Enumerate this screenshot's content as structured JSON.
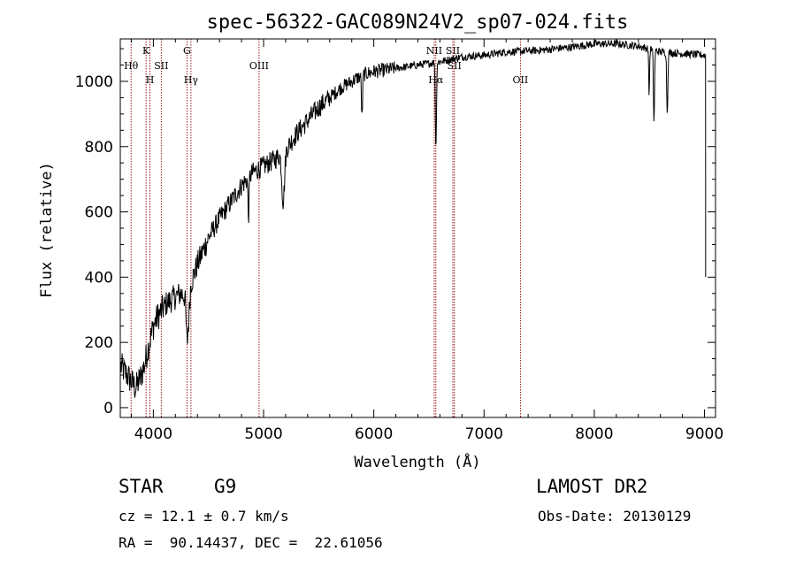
{
  "chart_data": {
    "type": "line",
    "title": "spec-56322-GAC089N24V2_sp07-024.fits",
    "xlabel": "Wavelength (Å)",
    "ylabel": "Flux (relative)",
    "xlim": [
      3700,
      9100
    ],
    "ylim": [
      -30,
      1130
    ],
    "xticks": [
      4000,
      5000,
      6000,
      7000,
      8000,
      9000
    ],
    "yticks": [
      0,
      200,
      400,
      600,
      800,
      1000
    ],
    "xtick_labels": [
      "4000",
      "5000",
      "6000",
      "7000",
      "8000",
      "9000"
    ],
    "ytick_labels": [
      "0",
      "200",
      "400",
      "600",
      "800",
      "1000"
    ],
    "continuum": [
      [
        3700,
        130
      ],
      [
        3760,
        100
      ],
      [
        3800,
        80
      ],
      [
        3840,
        60
      ],
      [
        3880,
        90
      ],
      [
        3920,
        130
      ],
      [
        3950,
        180
      ],
      [
        3980,
        220
      ],
      [
        4000,
        250
      ],
      [
        4040,
        280
      ],
      [
        4080,
        300
      ],
      [
        4120,
        320
      ],
      [
        4160,
        330
      ],
      [
        4200,
        340
      ],
      [
        4250,
        350
      ],
      [
        4300,
        340
      ],
      [
        4320,
        270
      ],
      [
        4340,
        380
      ],
      [
        4400,
        440
      ],
      [
        4500,
        520
      ],
      [
        4600,
        580
      ],
      [
        4700,
        630
      ],
      [
        4800,
        680
      ],
      [
        4900,
        720
      ],
      [
        5000,
        740
      ],
      [
        5100,
        760
      ],
      [
        5200,
        790
      ],
      [
        5300,
        840
      ],
      [
        5400,
        880
      ],
      [
        5500,
        920
      ],
      [
        5600,
        950
      ],
      [
        5700,
        980
      ],
      [
        5800,
        1000
      ],
      [
        5900,
        1020
      ],
      [
        6000,
        1030
      ],
      [
        6200,
        1040
      ],
      [
        6400,
        1050
      ],
      [
        6600,
        1060
      ],
      [
        6800,
        1075
      ],
      [
        7000,
        1080
      ],
      [
        7200,
        1090
      ],
      [
        7500,
        1095
      ],
      [
        7800,
        1105
      ],
      [
        8000,
        1115
      ],
      [
        8200,
        1115
      ],
      [
        8400,
        1108
      ],
      [
        8600,
        1090
      ],
      [
        8800,
        1085
      ],
      [
        9000,
        1080
      ]
    ],
    "absorption_features": [
      {
        "center": 4304,
        "depth": 120,
        "width": 8
      },
      {
        "center": 4863,
        "depth": 120,
        "width": 5
      },
      {
        "center": 5178,
        "depth": 150,
        "width": 12
      },
      {
        "center": 5893,
        "depth": 130,
        "width": 5
      },
      {
        "center": 6563,
        "depth": 270,
        "width": 5
      },
      {
        "center": 8498,
        "depth": 140,
        "width": 4
      },
      {
        "center": 8542,
        "depth": 220,
        "width": 5
      },
      {
        "center": 8662,
        "depth": 190,
        "width": 5
      }
    ],
    "spectral_lines": [
      {
        "name": "Hθ",
        "wavelength": 3798,
        "row": 2
      },
      {
        "name": "K",
        "wavelength": 3934,
        "row": 1
      },
      {
        "name": "H",
        "wavelength": 3969,
        "row": 3
      },
      {
        "name": "SII",
        "wavelength": 4072,
        "row": 2
      },
      {
        "name": "G",
        "wavelength": 4305,
        "row": 1
      },
      {
        "name": "Hγ",
        "wavelength": 4341,
        "row": 3
      },
      {
        "name": "OIII",
        "wavelength": 4959,
        "row": 2
      },
      {
        "name": "NII",
        "wavelength": 6548,
        "row": 1
      },
      {
        "name": "Hα",
        "wavelength": 6563,
        "row": 3
      },
      {
        "name": "SII",
        "wavelength": 6717,
        "row": 1
      },
      {
        "name": "SII",
        "wavelength": 6731,
        "row": 2
      },
      {
        "name": "OII",
        "wavelength": 7330,
        "row": 3
      }
    ]
  },
  "info": {
    "object_class": "STAR",
    "subclass": "G9",
    "survey": "LAMOST DR2",
    "redshift": "cz = 12.1 ± 0.7 km/s",
    "obs_date": "Obs-Date: 20130129",
    "coords": "RA =  90.14437, DEC =  22.61056"
  },
  "colors": {
    "line_markers": "#8b0000",
    "spectrum": "#000000"
  }
}
